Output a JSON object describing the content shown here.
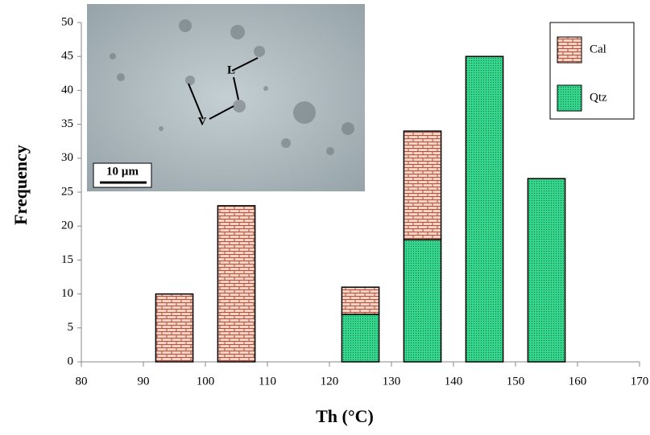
{
  "chart_data": {
    "type": "bar",
    "stacked": true,
    "x_label": "Th (°C)",
    "y_label": "Frequency",
    "x": [
      95,
      105,
      125,
      135,
      145,
      155
    ],
    "series": [
      {
        "name": "Cal",
        "color": "#f2c4b0",
        "values": [
          10,
          23,
          4,
          16,
          0,
          0
        ]
      },
      {
        "name": "Qtz",
        "color": "#33d68c",
        "values": [
          0,
          0,
          7,
          18,
          45,
          27
        ]
      }
    ],
    "xlim": [
      80,
      170
    ],
    "xticks": [
      80,
      90,
      100,
      110,
      120,
      130,
      140,
      150,
      160,
      170
    ],
    "ylim": [
      0,
      50
    ],
    "yticks": [
      0,
      5,
      10,
      15,
      20,
      25,
      30,
      35,
      40,
      45,
      50
    ],
    "grid": false,
    "legend": "upper right",
    "inset": {
      "labels": [
        "L",
        "V"
      ],
      "scale_bar": "10 µm"
    }
  }
}
